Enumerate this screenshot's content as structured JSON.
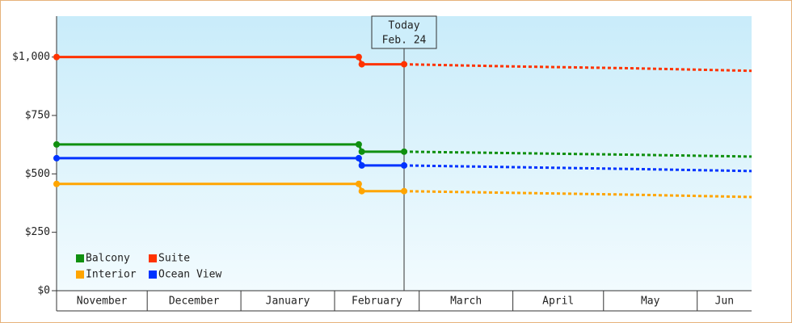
{
  "chart_data": {
    "type": "line",
    "x": [
      0,
      100,
      101,
      115,
      150,
      190,
      230
    ],
    "xlim": [
      0,
      230
    ],
    "xticks": [
      {
        "value": 0,
        "label": "November"
      },
      {
        "value": 30,
        "label": "December"
      },
      {
        "value": 61,
        "label": "January"
      },
      {
        "value": 92,
        "label": "February"
      },
      {
        "value": 120,
        "label": "March"
      },
      {
        "value": 151,
        "label": "April"
      },
      {
        "value": 181,
        "label": "May"
      },
      {
        "value": 212,
        "label": "Jun"
      }
    ],
    "ylim": [
      0,
      1175
    ],
    "yticks": [
      {
        "value": 0,
        "label": "$0"
      },
      {
        "value": 250,
        "label": "$250"
      },
      {
        "value": 500,
        "label": "$500"
      },
      {
        "value": 750,
        "label": "$750"
      },
      {
        "value": 1000,
        "label": "$1,000"
      }
    ],
    "forecast_from": 3,
    "today": {
      "x": 115,
      "label": [
        "Today",
        "Feb. 24"
      ]
    },
    "series": [
      {
        "name": "Balcony",
        "color": "#109010",
        "values": [
          626,
          626,
          595,
          595,
          589,
          582,
          574
        ]
      },
      {
        "name": "Suite",
        "color": "#ff3300",
        "values": [
          1000,
          1000,
          969,
          969,
          960,
          952,
          941
        ]
      },
      {
        "name": "Interior",
        "color": "#ffa500",
        "values": [
          457,
          457,
          426,
          426,
          419,
          411,
          401
        ]
      },
      {
        "name": "Ocean View",
        "color": "#0033ff",
        "values": [
          567,
          567,
          536,
          536,
          529,
          521,
          512
        ]
      }
    ]
  }
}
